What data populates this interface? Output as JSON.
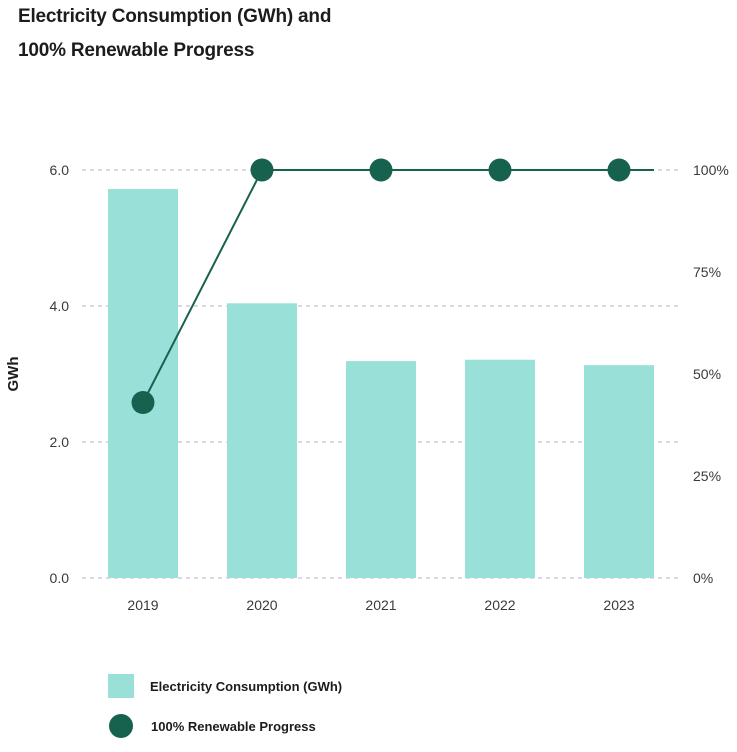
{
  "title_line1": "Electricity Consumption (GWh) and",
  "title_line2": "100% Renewable Progress",
  "chart_data": {
    "type": "bar",
    "title": "Electricity Consumption (GWh) and 100% Renewable Progress",
    "categories": [
      "2019",
      "2020",
      "2021",
      "2022",
      "2023"
    ],
    "ylabel": "GWh",
    "ylim": [
      0,
      6
    ],
    "yticks": [
      "0.0",
      "2.0",
      "4.0",
      "6.0"
    ],
    "y2lim": [
      0,
      100
    ],
    "y2ticks": [
      "0%",
      "25%",
      "50%",
      "75%",
      "100%"
    ],
    "grid": "horizontal-dashed",
    "series": [
      {
        "name": "Electricity Consumption (GWh)",
        "type": "bar",
        "axis": "left",
        "color": "#99e1d8",
        "values": [
          5.72,
          4.04,
          3.19,
          3.21,
          3.13
        ]
      },
      {
        "name": "100% Renewable Progress",
        "type": "line",
        "axis": "right",
        "color": "#17614f",
        "values": [
          43,
          100,
          100,
          100,
          100
        ]
      }
    ]
  },
  "legend": {
    "items": [
      {
        "label": "Electricity Consumption (GWh)",
        "swatch": "bar"
      },
      {
        "label": "100% Renewable Progress",
        "swatch": "dot"
      }
    ]
  }
}
